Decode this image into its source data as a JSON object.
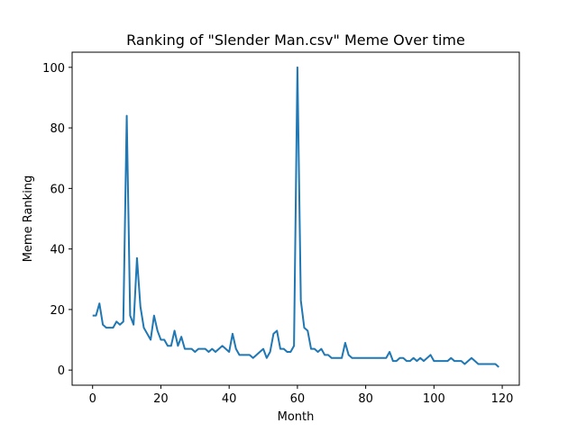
{
  "chart_data": {
    "type": "line",
    "title": "Ranking of \"Slender Man.csv\" Meme Over time",
    "xlabel": "Month",
    "ylabel": "Meme Ranking",
    "xlim": [
      -6,
      125
    ],
    "ylim": [
      -5,
      105
    ],
    "xticks": [
      0,
      20,
      40,
      60,
      80,
      100,
      120
    ],
    "yticks": [
      0,
      20,
      40,
      60,
      80,
      100
    ],
    "grid": false,
    "series": [
      {
        "color": "#1f77b4",
        "x": [
          0,
          1,
          2,
          3,
          4,
          5,
          6,
          7,
          8,
          9,
          10,
          11,
          12,
          13,
          14,
          15,
          16,
          17,
          18,
          19,
          20,
          21,
          22,
          23,
          24,
          25,
          26,
          27,
          28,
          29,
          30,
          31,
          32,
          33,
          34,
          35,
          36,
          37,
          38,
          39,
          40,
          41,
          42,
          43,
          44,
          45,
          46,
          47,
          48,
          49,
          50,
          51,
          52,
          53,
          54,
          55,
          56,
          57,
          58,
          59,
          60,
          61,
          62,
          63,
          64,
          65,
          66,
          67,
          68,
          69,
          70,
          71,
          72,
          73,
          74,
          75,
          76,
          77,
          78,
          79,
          80,
          81,
          82,
          83,
          84,
          85,
          86,
          87,
          88,
          89,
          90,
          91,
          92,
          93,
          94,
          95,
          96,
          97,
          98,
          99,
          100,
          101,
          102,
          103,
          104,
          105,
          106,
          107,
          108,
          109,
          110,
          111,
          112,
          113,
          114,
          115,
          116,
          117,
          118,
          119
        ],
        "values": [
          18,
          18,
          22,
          15,
          14,
          14,
          14,
          16,
          15,
          16,
          84,
          18,
          15,
          37,
          21,
          14,
          12,
          10,
          18,
          13,
          10,
          10,
          8,
          8,
          13,
          8,
          11,
          7,
          7,
          7,
          6,
          7,
          7,
          7,
          6,
          7,
          6,
          7,
          8,
          7,
          6,
          12,
          7,
          5,
          5,
          5,
          5,
          4,
          5,
          6,
          7,
          4,
          6,
          12,
          13,
          7,
          7,
          6,
          6,
          8,
          100,
          23,
          14,
          13,
          7,
          7,
          6,
          7,
          5,
          5,
          4,
          4,
          4,
          4,
          9,
          5,
          4,
          4,
          4,
          4,
          4,
          4,
          4,
          4,
          4,
          4,
          4,
          6,
          3,
          3,
          4,
          4,
          3,
          3,
          4,
          3,
          4,
          3,
          4,
          5,
          3,
          3,
          3,
          3,
          3,
          4,
          3,
          3,
          3,
          2,
          3,
          4,
          3,
          2,
          2,
          2,
          2,
          2,
          2,
          1
        ]
      }
    ]
  }
}
